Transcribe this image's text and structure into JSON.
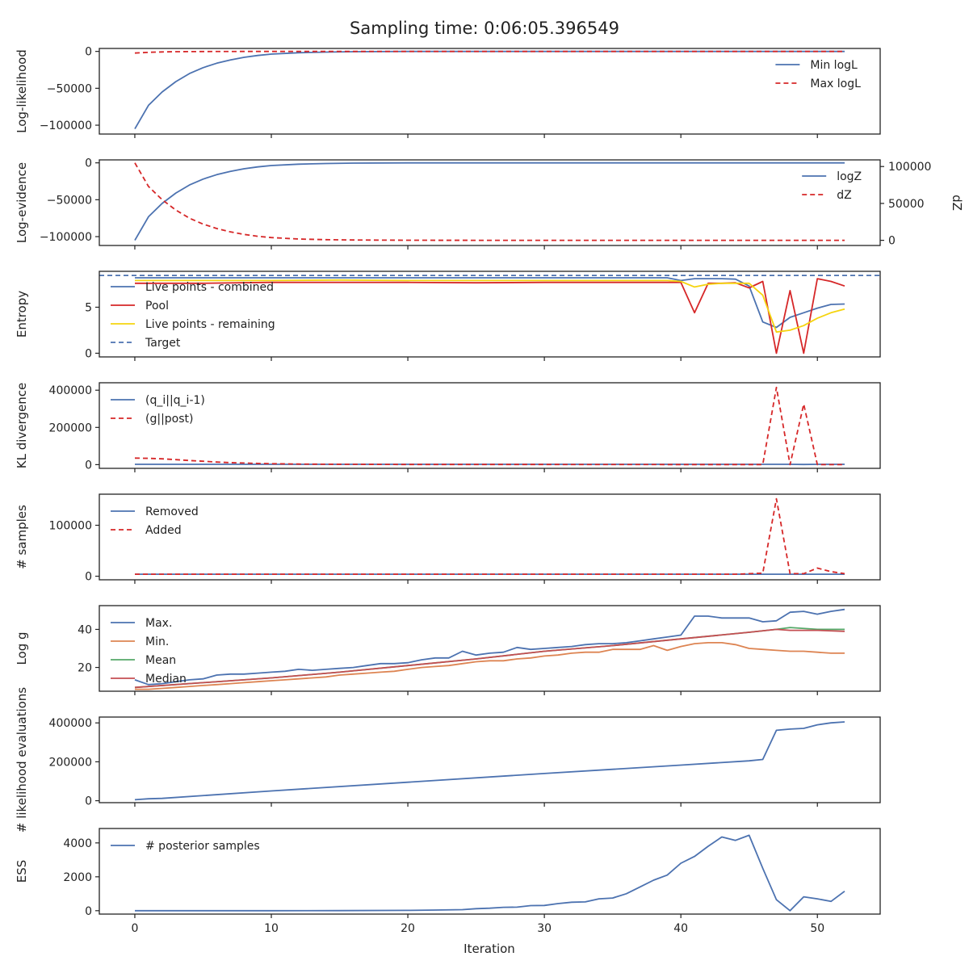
{
  "figure_title": "Sampling time: 0:06:05.396549",
  "xlabel": "Iteration",
  "x_ticks": [
    0,
    10,
    20,
    30,
    40,
    50
  ],
  "colors": {
    "blue": "#4c72b0",
    "red": "#d62728",
    "yellow": "#f5d40f",
    "orange": "#dd8452",
    "green": "#55a868",
    "redbrown": "#c44e52"
  },
  "chart_data": [
    {
      "type": "line",
      "ylabel": "Log-likelihood",
      "xlim": [
        -2.6,
        54.6
      ],
      "ylim": [
        -112000,
        4000
      ],
      "yticks": [
        0,
        -50000,
        -100000
      ],
      "ytick_labels": [
        "0",
        "−50000",
        "−100000"
      ],
      "legend": "upper right",
      "series": [
        {
          "name": "Min logL",
          "style": "solid",
          "color": "#4c72b0",
          "x": [
            0,
            1,
            2,
            3,
            4,
            5,
            6,
            7,
            8,
            9,
            10,
            12,
            14,
            16,
            20,
            25,
            30,
            40,
            52
          ],
          "y": [
            -105000,
            -73000,
            -55000,
            -41000,
            -30000,
            -22000,
            -16000,
            -11500,
            -8000,
            -5500,
            -3700,
            -1800,
            -900,
            -400,
            -100,
            -20,
            -5,
            -1,
            0
          ]
        },
        {
          "name": "Max logL",
          "style": "dashed",
          "color": "#d62728",
          "x": [
            0,
            1,
            2,
            3,
            5,
            8,
            12,
            20,
            52
          ],
          "y": [
            -2200,
            -1200,
            -700,
            -400,
            -200,
            -80,
            -20,
            -5,
            0
          ]
        }
      ]
    },
    {
      "type": "line",
      "ylabel": "Log-evidence",
      "ylabel_right": "dZ",
      "xlim": [
        -2.6,
        54.6
      ],
      "ylim": [
        -112000,
        4000
      ],
      "yticks": [
        0,
        -50000,
        -100000
      ],
      "ytick_labels": [
        "0",
        "−50000",
        "−100000"
      ],
      "ylim_right": [
        -7000,
        109000
      ],
      "yticks_right": [
        0,
        50000,
        100000
      ],
      "ytick_labels_right": [
        "0",
        "50000",
        "100000"
      ],
      "legend": "upper right",
      "series": [
        {
          "name": "logZ",
          "style": "solid",
          "color": "#4c72b0",
          "axis": "left",
          "x": [
            0,
            1,
            2,
            3,
            4,
            5,
            6,
            7,
            8,
            9,
            10,
            12,
            14,
            16,
            20,
            25,
            30,
            40,
            52
          ],
          "y": [
            -105000,
            -73000,
            -55000,
            -41000,
            -30000,
            -22000,
            -16000,
            -11500,
            -8000,
            -5500,
            -3700,
            -1800,
            -900,
            -400,
            -100,
            -20,
            -5,
            -1,
            0
          ]
        },
        {
          "name": "dZ",
          "style": "dashed",
          "color": "#d62728",
          "axis": "right",
          "x": [
            0,
            1,
            2,
            3,
            4,
            5,
            6,
            7,
            8,
            9,
            10,
            12,
            14,
            16,
            20,
            25,
            30,
            40,
            52
          ],
          "y": [
            105000,
            73000,
            55000,
            41000,
            30000,
            22000,
            16000,
            11500,
            8000,
            5500,
            3700,
            1800,
            900,
            400,
            100,
            20,
            5,
            1,
            0
          ]
        }
      ]
    },
    {
      "type": "line",
      "ylabel": "Entropy",
      "xlim": [
        -2.6,
        54.6
      ],
      "ylim": [
        -0.4,
        8.9
      ],
      "yticks": [
        0,
        5
      ],
      "ytick_labels": [
        "0",
        "5"
      ],
      "legend": "lower left",
      "hline": {
        "name": "Target",
        "y": 8.45,
        "style": "dashed",
        "color": "#4c72b0"
      },
      "series": [
        {
          "name": "Live points - combined",
          "style": "solid",
          "color": "#4c72b0",
          "x": [
            0,
            5,
            10,
            15,
            20,
            25,
            30,
            35,
            38,
            39,
            40,
            41,
            42,
            43,
            44,
            45,
            46,
            47,
            48,
            49,
            50,
            51,
            52
          ],
          "y": [
            8.2,
            8.2,
            8.2,
            8.2,
            8.2,
            8.2,
            8.2,
            8.2,
            8.2,
            8.2,
            7.9,
            8.1,
            8.1,
            8.1,
            8.05,
            7.3,
            3.4,
            2.8,
            3.9,
            4.4,
            4.9,
            5.3,
            5.35
          ]
        },
        {
          "name": "Pool",
          "style": "solid",
          "color": "#d62728",
          "x": [
            0,
            5,
            10,
            15,
            20,
            25,
            30,
            35,
            38,
            39,
            40,
            41,
            42,
            43,
            44,
            45,
            46,
            47,
            48,
            49,
            50,
            51,
            52
          ],
          "y": [
            7.6,
            7.6,
            7.7,
            7.7,
            7.7,
            7.65,
            7.7,
            7.7,
            7.7,
            7.7,
            7.7,
            4.4,
            7.6,
            7.6,
            7.65,
            7.1,
            7.8,
            0,
            6.8,
            0,
            8.1,
            7.8,
            7.3
          ]
        },
        {
          "name": "Live points - remaining",
          "style": "solid",
          "color": "#f5d40f",
          "x": [
            0,
            5,
            10,
            15,
            20,
            25,
            30,
            35,
            38,
            39,
            40,
            41,
            42,
            43,
            44,
            45,
            46,
            47,
            48,
            49,
            50,
            51,
            52
          ],
          "y": [
            7.9,
            7.9,
            7.9,
            7.95,
            7.9,
            7.9,
            7.9,
            7.9,
            7.9,
            7.9,
            7.8,
            7.2,
            7.5,
            7.6,
            7.6,
            7.6,
            6.3,
            2.3,
            2.5,
            3.0,
            3.8,
            4.4,
            4.8
          ]
        }
      ]
    },
    {
      "type": "line",
      "ylabel": "KL divergence",
      "xlim": [
        -2.6,
        54.6
      ],
      "ylim": [
        -20000,
        440000
      ],
      "yticks": [
        0,
        200000,
        400000
      ],
      "ytick_labels": [
        "0",
        "200000",
        "400000"
      ],
      "legend": "upper left",
      "series": [
        {
          "name": "(q_i||q_i-1)",
          "style": "solid",
          "color": "#4c72b0",
          "x": [
            0,
            10,
            20,
            30,
            40,
            46,
            47,
            48,
            49,
            50,
            52
          ],
          "y": [
            1500,
            1500,
            1500,
            1500,
            1500,
            1500,
            1500,
            1500,
            800,
            1500,
            1500
          ]
        },
        {
          "name": "(g||post)",
          "style": "dashed",
          "color": "#d62728",
          "x": [
            0,
            1,
            2,
            3,
            4,
            5,
            6,
            7,
            8,
            9,
            10,
            12,
            14,
            16,
            20,
            30,
            40,
            45,
            46,
            47,
            48,
            49,
            50,
            51,
            52
          ],
          "y": [
            35000,
            34000,
            31000,
            27000,
            22000,
            18000,
            14000,
            11000,
            8500,
            6500,
            5000,
            3000,
            2000,
            1500,
            1000,
            800,
            600,
            500,
            500,
            415000,
            0,
            325000,
            0,
            0,
            0
          ]
        }
      ]
    },
    {
      "type": "line",
      "ylabel": "# samples",
      "xlim": [
        -2.6,
        54.6
      ],
      "ylim": [
        -7000,
        161000
      ],
      "yticks": [
        0,
        100000
      ],
      "ytick_labels": [
        "0",
        "100000"
      ],
      "legend": "upper left",
      "series": [
        {
          "name": "Removed",
          "style": "solid",
          "color": "#4c72b0",
          "x": [
            0,
            10,
            20,
            30,
            40,
            46,
            47,
            48,
            49,
            50,
            51,
            52
          ],
          "y": [
            4000,
            4000,
            4000,
            4000,
            4000,
            4000,
            4000,
            4000,
            4000,
            4000,
            4000,
            4000
          ]
        },
        {
          "name": "Added",
          "style": "dashed",
          "color": "#d62728",
          "x": [
            0,
            10,
            20,
            30,
            40,
            44,
            45,
            46,
            47,
            48,
            49,
            50,
            51,
            52
          ],
          "y": [
            4000,
            4000,
            4000,
            4000,
            4000,
            4000,
            5000,
            6000,
            152000,
            5000,
            5000,
            16000,
            9000,
            5000
          ]
        }
      ]
    },
    {
      "type": "line",
      "ylabel": "Log g",
      "xlim": [
        -2.6,
        54.6
      ],
      "ylim": [
        7.5,
        52.5
      ],
      "yticks": [
        20,
        40
      ],
      "ytick_labels": [
        "20",
        "40"
      ],
      "legend": "upper left",
      "series": [
        {
          "name": "Max.",
          "style": "solid",
          "color": "#4c72b0",
          "x": [
            0,
            1,
            2,
            3,
            4,
            5,
            6,
            7,
            8,
            9,
            10,
            11,
            12,
            13,
            14,
            15,
            16,
            17,
            18,
            19,
            20,
            21,
            22,
            23,
            24,
            25,
            26,
            27,
            28,
            29,
            30,
            31,
            32,
            33,
            34,
            35,
            36,
            37,
            38,
            39,
            40,
            41,
            42,
            43,
            44,
            45,
            46,
            47,
            48,
            49,
            50,
            51,
            52
          ],
          "y": [
            13.5,
            11,
            11.5,
            12.5,
            13.5,
            14,
            16,
            16.5,
            16.5,
            17,
            17.5,
            18,
            19,
            18.5,
            19,
            19.5,
            20,
            21,
            22,
            22,
            22.5,
            24,
            25,
            25,
            28.5,
            26.5,
            27.5,
            28,
            30.5,
            29.5,
            30,
            30.5,
            31,
            32,
            32.5,
            32.5,
            33,
            34,
            35,
            36,
            37,
            47,
            47,
            46,
            46,
            46,
            44,
            44.5,
            49,
            49.5,
            48,
            49.5,
            50.5
          ]
        },
        {
          "name": "Min.",
          "style": "solid",
          "color": "#dd8452",
          "x": [
            0,
            1,
            2,
            3,
            4,
            5,
            6,
            7,
            8,
            9,
            10,
            11,
            12,
            13,
            14,
            15,
            16,
            17,
            18,
            19,
            20,
            21,
            22,
            23,
            24,
            25,
            26,
            27,
            28,
            29,
            30,
            31,
            32,
            33,
            34,
            35,
            36,
            37,
            38,
            39,
            40,
            41,
            42,
            43,
            44,
            45,
            46,
            47,
            48,
            49,
            50,
            51,
            52
          ],
          "y": [
            8.5,
            8.5,
            9,
            9.5,
            10,
            10.5,
            11,
            11.5,
            12,
            12.5,
            13,
            13.5,
            14,
            14.5,
            15,
            16,
            16.5,
            17,
            17.5,
            18,
            19,
            20,
            20.5,
            21,
            22,
            23,
            23.5,
            23.5,
            24.5,
            25,
            26,
            26.5,
            27.5,
            28,
            28,
            29.5,
            29.5,
            29.5,
            31.5,
            29,
            31,
            32.5,
            33,
            33,
            32,
            30,
            29.5,
            29,
            28.5,
            28.5,
            28,
            27.5,
            27.5
          ]
        },
        {
          "name": "Mean",
          "style": "solid",
          "color": "#55a868",
          "x": [
            0,
            5,
            10,
            15,
            20,
            25,
            30,
            35,
            40,
            45,
            47,
            48,
            50,
            52
          ],
          "y": [
            9.5,
            12,
            14.5,
            17.5,
            21,
            24.5,
            28.5,
            31.5,
            35,
            38.5,
            40,
            41,
            40,
            40
          ]
        },
        {
          "name": "Median",
          "style": "solid",
          "color": "#c44e52",
          "x": [
            0,
            5,
            10,
            15,
            20,
            25,
            30,
            35,
            40,
            45,
            47,
            48,
            50,
            52
          ],
          "y": [
            9.5,
            12,
            14.5,
            17.5,
            21,
            24.5,
            28.5,
            31.5,
            35,
            38.5,
            40,
            39.5,
            39.5,
            39
          ]
        }
      ]
    },
    {
      "type": "line",
      "ylabel": "# likelihood evaluations",
      "xlim": [
        -2.6,
        54.6
      ],
      "ylim": [
        -10000,
        430000
      ],
      "yticks": [
        0,
        200000,
        400000
      ],
      "ytick_labels": [
        "0",
        "200000",
        "400000"
      ],
      "series": [
        {
          "name": "",
          "style": "solid",
          "color": "#4c72b0",
          "x": [
            0,
            1,
            2,
            10,
            20,
            30,
            40,
            45,
            46,
            47,
            48,
            49,
            50,
            51,
            52
          ],
          "y": [
            5000,
            10000,
            12000,
            50000,
            95000,
            140000,
            183000,
            205000,
            212000,
            362000,
            368000,
            372000,
            390000,
            400000,
            405000
          ]
        }
      ]
    },
    {
      "type": "line",
      "ylabel": "ESS",
      "xlim": [
        -2.6,
        54.6
      ],
      "ylim": [
        -200,
        4850
      ],
      "yticks": [
        0,
        2000,
        4000
      ],
      "ytick_labels": [
        "0",
        "2000",
        "4000"
      ],
      "legend": "upper left",
      "series": [
        {
          "name": "# posterior samples",
          "style": "solid",
          "color": "#4c72b0",
          "x": [
            0,
            10,
            15,
            20,
            22,
            24,
            25,
            26,
            27,
            28,
            29,
            30,
            31,
            32,
            33,
            34,
            35,
            36,
            37,
            38,
            39,
            40,
            41,
            42,
            43,
            44,
            45,
            46,
            47,
            48,
            49,
            50,
            51,
            52
          ],
          "y": [
            0,
            0,
            5,
            20,
            40,
            60,
            120,
            150,
            200,
            210,
            300,
            310,
            420,
            500,
            520,
            700,
            750,
            1000,
            1400,
            1800,
            2100,
            2800,
            3200,
            3800,
            4350,
            4150,
            4450,
            2500,
            650,
            0,
            820,
            700,
            550,
            1150
          ]
        }
      ]
    }
  ]
}
